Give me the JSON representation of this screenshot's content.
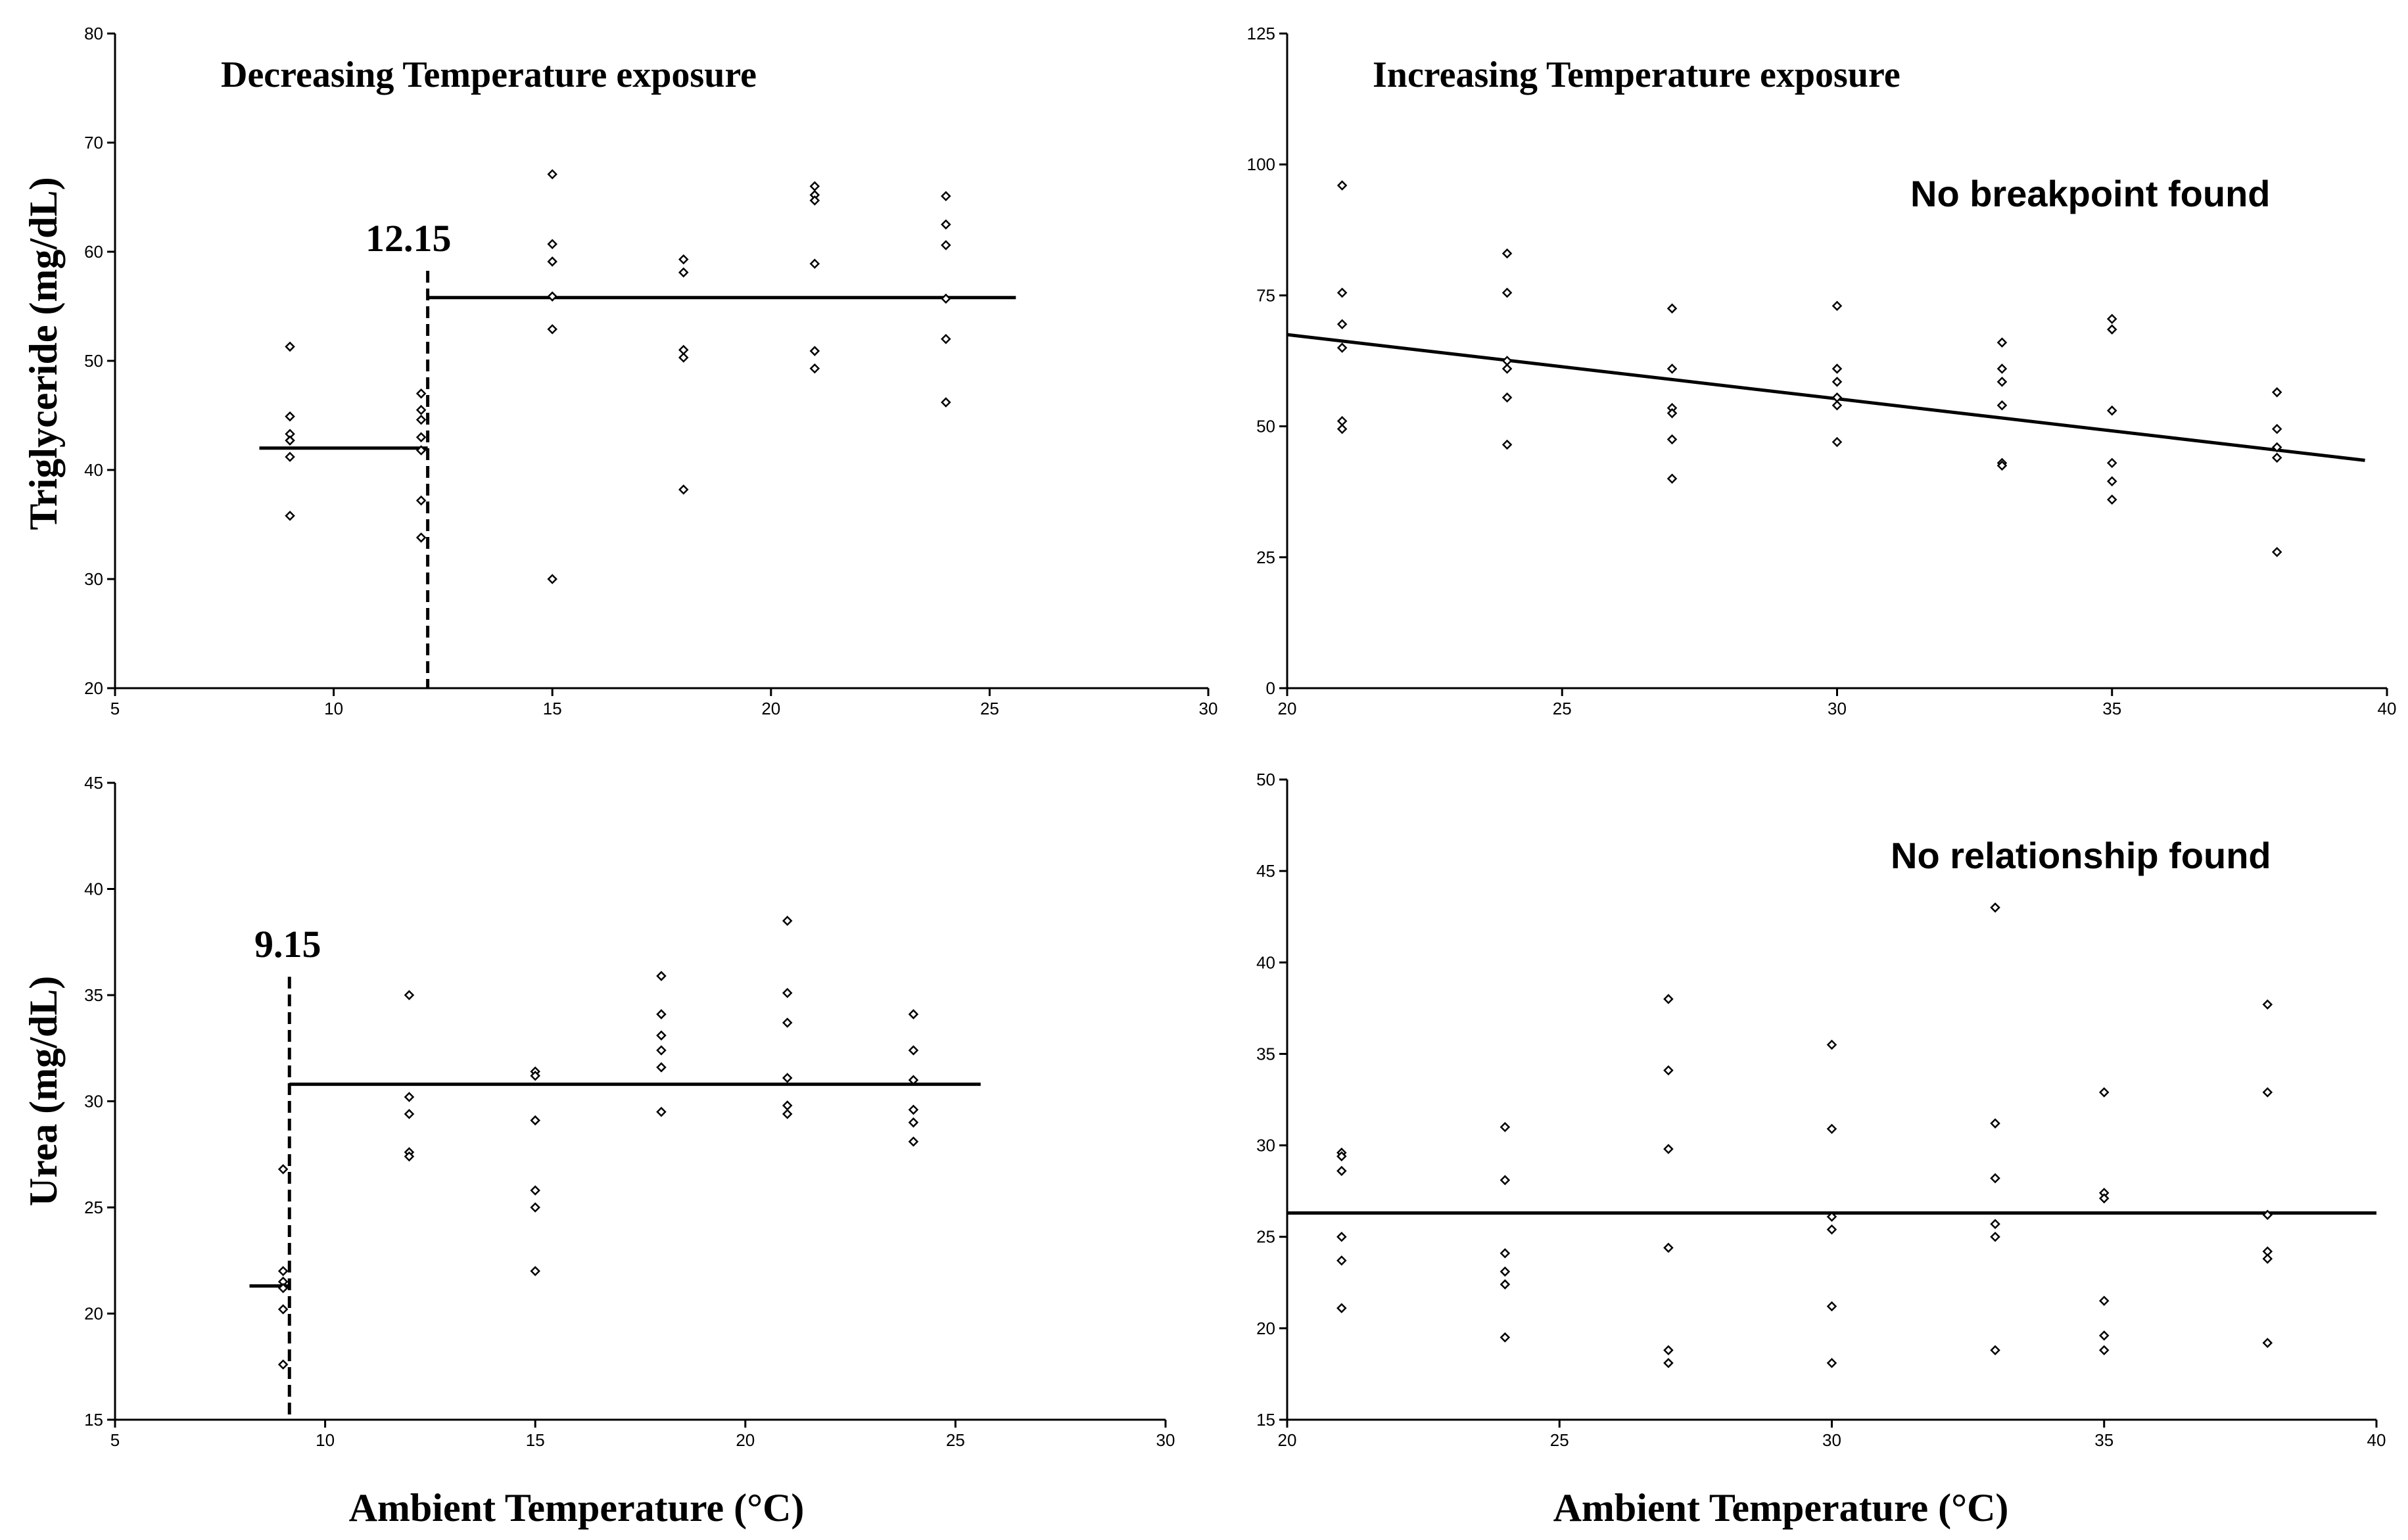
{
  "figure": {
    "ylabel_top_left": "Triglyceride  (mg/dL)",
    "ylabel_bottom_left": "Urea  (mg/dL)",
    "xlabel_bottom_left": "Ambient Temperature (°C)",
    "xlabel_bottom_right": "Ambient Temperature (°C)"
  },
  "chart_data": [
    {
      "id": "tg_decreasing",
      "type": "scatter",
      "title": "Decreasing Temperature exposure",
      "ylabel": "Triglyceride  (mg/dL)",
      "xlabel": "",
      "xlim": [
        5,
        30
      ],
      "ylim": [
        20,
        80
      ],
      "xticks": [
        5,
        10,
        15,
        20,
        25,
        30
      ],
      "yticks": [
        20,
        30,
        40,
        50,
        60,
        70,
        80
      ],
      "breakpoint": {
        "x": 12.15,
        "label": "12.15"
      },
      "fit": [
        {
          "x1": 8.3,
          "x2": 12.15,
          "y": 42
        },
        {
          "x1": 12.15,
          "x2": 25.6,
          "y": 55.8
        }
      ],
      "points": [
        [
          9,
          51.3
        ],
        [
          9,
          44.9
        ],
        [
          9,
          43.3
        ],
        [
          9,
          42.7
        ],
        [
          9,
          41.2
        ],
        [
          9,
          35.8
        ],
        [
          12,
          47.0
        ],
        [
          12,
          45.5
        ],
        [
          12,
          44.6
        ],
        [
          12,
          43.0
        ],
        [
          12,
          41.8
        ],
        [
          12,
          37.2
        ],
        [
          12,
          33.8
        ],
        [
          15,
          67.1
        ],
        [
          15,
          60.7
        ],
        [
          15,
          59.1
        ],
        [
          15,
          55.9
        ],
        [
          15,
          52.9
        ],
        [
          15,
          30.0
        ],
        [
          18,
          59.3
        ],
        [
          18,
          58.1
        ],
        [
          18,
          51.0
        ],
        [
          18,
          50.3
        ],
        [
          18,
          38.2
        ],
        [
          21,
          66.0
        ],
        [
          21,
          65.2
        ],
        [
          21,
          64.7
        ],
        [
          21,
          58.9
        ],
        [
          21,
          50.9
        ],
        [
          21,
          49.3
        ],
        [
          24,
          65.1
        ],
        [
          24,
          62.5
        ],
        [
          24,
          60.6
        ],
        [
          24,
          55.7
        ],
        [
          24,
          52.0
        ],
        [
          24,
          46.2
        ]
      ]
    },
    {
      "id": "tg_increasing",
      "type": "scatter",
      "title": "Increasing Temperature exposure",
      "annotation": "No breakpoint found",
      "xlabel": "",
      "ylabel": "",
      "xlim": [
        20,
        40
      ],
      "ylim": [
        0,
        125
      ],
      "xticks": [
        20,
        25,
        30,
        35,
        40
      ],
      "yticks": [
        0,
        25,
        50,
        75,
        100,
        125
      ],
      "fit": [
        {
          "x1": 20,
          "y1": 67.5,
          "x2": 39.6,
          "y2": 43.5
        }
      ],
      "points": [
        [
          21,
          96
        ],
        [
          21,
          75.5
        ],
        [
          21,
          69.5
        ],
        [
          21,
          65
        ],
        [
          21,
          51
        ],
        [
          21,
          49.5
        ],
        [
          24,
          83
        ],
        [
          24,
          75.5
        ],
        [
          24,
          62.5
        ],
        [
          24,
          61
        ],
        [
          24,
          55.5
        ],
        [
          24,
          46.5
        ],
        [
          27,
          72.5
        ],
        [
          27,
          61
        ],
        [
          27,
          53.5
        ],
        [
          27,
          52.5
        ],
        [
          27,
          47.5
        ],
        [
          27,
          40
        ],
        [
          30,
          73
        ],
        [
          30,
          61
        ],
        [
          30,
          58.5
        ],
        [
          30,
          55.5
        ],
        [
          30,
          54
        ],
        [
          30,
          47
        ],
        [
          33,
          66
        ],
        [
          33,
          61
        ],
        [
          33,
          58.5
        ],
        [
          33,
          54
        ],
        [
          33,
          43
        ],
        [
          33,
          42.5
        ],
        [
          35,
          70.5
        ],
        [
          35,
          68.5
        ],
        [
          35,
          53
        ],
        [
          35,
          43
        ],
        [
          35,
          39.5
        ],
        [
          35,
          36
        ],
        [
          38,
          56.5
        ],
        [
          38,
          49.5
        ],
        [
          38,
          46
        ],
        [
          38,
          44
        ],
        [
          38,
          26
        ]
      ]
    },
    {
      "id": "urea_decreasing",
      "type": "scatter",
      "title": "",
      "ylabel": "Urea  (mg/dL)",
      "xlabel": "Ambient Temperature (°C)",
      "xlim": [
        5,
        30
      ],
      "ylim": [
        15,
        45
      ],
      "xticks": [
        5,
        10,
        15,
        20,
        25,
        30
      ],
      "yticks": [
        15,
        20,
        25,
        30,
        35,
        40,
        45
      ],
      "breakpoint": {
        "x": 9.15,
        "label": "9.15"
      },
      "fit": [
        {
          "x1": 8.2,
          "x2": 9.15,
          "y": 21.3
        },
        {
          "x1": 9.15,
          "x2": 25.6,
          "y": 30.8
        }
      ],
      "points": [
        [
          9,
          26.8
        ],
        [
          9,
          22
        ],
        [
          9,
          21.5
        ],
        [
          9,
          21.2
        ],
        [
          9,
          20.2
        ],
        [
          9,
          17.6
        ],
        [
          12,
          35
        ],
        [
          12,
          30.2
        ],
        [
          12,
          29.4
        ],
        [
          12,
          27.6
        ],
        [
          12,
          27.4
        ],
        [
          15,
          31.4
        ],
        [
          15,
          31.2
        ],
        [
          15,
          29.1
        ],
        [
          15,
          25.8
        ],
        [
          15,
          25
        ],
        [
          15,
          22
        ],
        [
          18,
          35.9
        ],
        [
          18,
          34.1
        ],
        [
          18,
          33.1
        ],
        [
          18,
          32.4
        ],
        [
          18,
          31.6
        ],
        [
          18,
          29.5
        ],
        [
          21,
          38.5
        ],
        [
          21,
          35.1
        ],
        [
          21,
          33.7
        ],
        [
          21,
          31.1
        ],
        [
          21,
          29.8
        ],
        [
          21,
          29.4
        ],
        [
          24,
          34.1
        ],
        [
          24,
          32.4
        ],
        [
          24,
          31
        ],
        [
          24,
          29.6
        ],
        [
          24,
          29
        ],
        [
          24,
          28.1
        ]
      ]
    },
    {
      "id": "urea_increasing",
      "type": "scatter",
      "title": "",
      "annotation": "No relationship found",
      "ylabel": "",
      "xlabel": "Ambient Temperature (°C)",
      "xlim": [
        20,
        40
      ],
      "ylim": [
        15,
        50
      ],
      "xticks": [
        20,
        25,
        30,
        35,
        40
      ],
      "yticks": [
        15,
        20,
        25,
        30,
        35,
        40,
        45,
        50
      ],
      "fit": [
        {
          "x1": 20,
          "x2": 40,
          "y": 26.3
        }
      ],
      "points": [
        [
          21,
          29.6
        ],
        [
          21,
          29.4
        ],
        [
          21,
          28.6
        ],
        [
          21,
          25
        ],
        [
          21,
          23.7
        ],
        [
          21,
          21.1
        ],
        [
          24,
          31
        ],
        [
          24,
          28.1
        ],
        [
          24,
          24.1
        ],
        [
          24,
          23.1
        ],
        [
          24,
          22.4
        ],
        [
          24,
          19.5
        ],
        [
          27,
          38
        ],
        [
          27,
          34.1
        ],
        [
          27,
          29.8
        ],
        [
          27,
          24.4
        ],
        [
          27,
          18.8
        ],
        [
          27,
          18.1
        ],
        [
          30,
          35.5
        ],
        [
          30,
          30.9
        ],
        [
          30,
          26.1
        ],
        [
          30,
          25.4
        ],
        [
          30,
          21.2
        ],
        [
          30,
          18.1
        ],
        [
          33,
          43
        ],
        [
          33,
          31.2
        ],
        [
          33,
          28.2
        ],
        [
          33,
          25.7
        ],
        [
          33,
          25
        ],
        [
          33,
          18.8
        ],
        [
          35,
          32.9
        ],
        [
          35,
          27.4
        ],
        [
          35,
          27.1
        ],
        [
          35,
          21.5
        ],
        [
          35,
          19.6
        ],
        [
          35,
          18.8
        ],
        [
          38,
          37.7
        ],
        [
          38,
          32.9
        ],
        [
          38,
          26.2
        ],
        [
          38,
          24.2
        ],
        [
          38,
          23.8
        ],
        [
          38,
          19.2
        ]
      ]
    }
  ]
}
